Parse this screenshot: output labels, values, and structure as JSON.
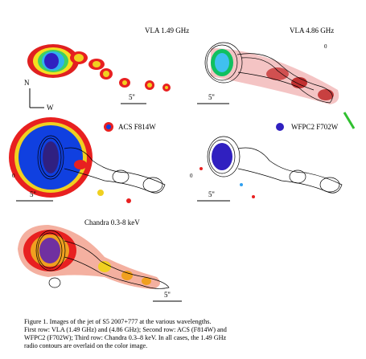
{
  "panels": [
    {
      "label": "VLA 1.49 GHz",
      "scale": "5''",
      "compass": {
        "north": "N",
        "west": "W"
      }
    },
    {
      "label": "VLA 4.86 GHz",
      "scale": "5''",
      "offset": "0"
    },
    {
      "label": "ACS F814W",
      "scale": "5''",
      "offset": "0"
    },
    {
      "label": "WFPC2 F702W",
      "scale": "5''",
      "offset": "0"
    },
    {
      "label": "Chandra 0.3-8 keV",
      "scale": "5''"
    }
  ],
  "caption": {
    "lines": [
      "Figure 1.    Images of the jet of S5 2007+777 at the various wavelengths.",
      "First row: VLA (1.49 GHz) and (4.86 GHz); Second row: ACS (F814W) and",
      "WFPC2 (F702W); Third row: Chandra 0.3–8 keV. In all cases, the 1.49 GHz",
      "radio contours are overlaid on the color image."
    ]
  }
}
